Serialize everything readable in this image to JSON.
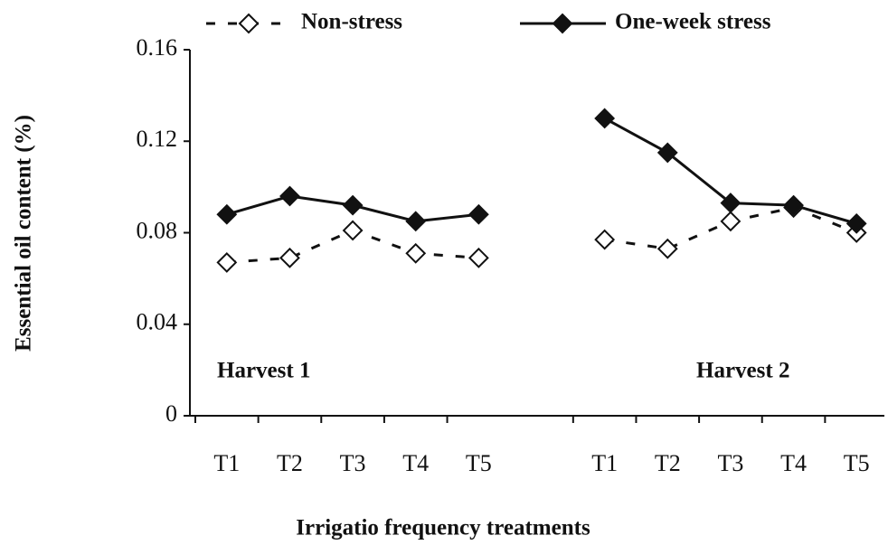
{
  "chart_data": {
    "type": "line",
    "x_label": "Irrigatio frequency treatments",
    "y_label": "Essential oil  content (%)",
    "categories": [
      "T1",
      "T2",
      "T3",
      "T4",
      "T5",
      null,
      "T1",
      "T2",
      "T3",
      "T4",
      "T5"
    ],
    "series": [
      {
        "name": "Non-stress",
        "color": "#111111",
        "marker": "open-diamond",
        "dash": true,
        "values": [
          0.067,
          0.069,
          0.081,
          0.071,
          0.069,
          null,
          0.077,
          0.073,
          0.085,
          0.091,
          0.08
        ]
      },
      {
        "name": "One-week stress",
        "color": "#111111",
        "marker": "filled-diamond",
        "dash": false,
        "values": [
          0.088,
          0.096,
          0.092,
          0.085,
          0.088,
          null,
          0.13,
          0.115,
          0.093,
          0.092,
          0.084
        ]
      }
    ],
    "annotations": [
      "Harvest 1",
      "Harvest 2"
    ],
    "ylim": [
      0,
      0.16
    ],
    "yticks": [
      0,
      0.04,
      0.08,
      0.12,
      0.16
    ],
    "grid": false,
    "legend": "top"
  }
}
